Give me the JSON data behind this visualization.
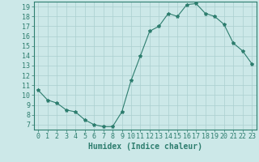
{
  "xlabel": "Humidex (Indice chaleur)",
  "ylabel": "",
  "x_values": [
    0,
    1,
    2,
    3,
    4,
    5,
    6,
    7,
    8,
    9,
    10,
    11,
    12,
    13,
    14,
    15,
    16,
    17,
    18,
    19,
    20,
    21,
    22,
    23
  ],
  "y_values": [
    10.5,
    9.5,
    9.2,
    8.5,
    8.3,
    7.5,
    7.0,
    6.8,
    6.8,
    8.3,
    11.5,
    14.0,
    16.5,
    17.0,
    18.3,
    18.0,
    19.2,
    19.3,
    18.3,
    18.0,
    17.2,
    15.3,
    14.5,
    13.2
  ],
  "line_color": "#2d7d6e",
  "marker": "*",
  "marker_size": 3,
  "bg_color": "#cce8e8",
  "grid_color": "#aacfcf",
  "xlim": [
    -0.5,
    23.5
  ],
  "ylim": [
    6.5,
    19.5
  ],
  "yticks": [
    7,
    8,
    9,
    10,
    11,
    12,
    13,
    14,
    15,
    16,
    17,
    18,
    19
  ],
  "xticks": [
    0,
    1,
    2,
    3,
    4,
    5,
    6,
    7,
    8,
    9,
    10,
    11,
    12,
    13,
    14,
    15,
    16,
    17,
    18,
    19,
    20,
    21,
    22,
    23
  ],
  "tick_color": "#2d7d6e",
  "axis_color": "#2d7d6e",
  "label_fontsize": 6,
  "xlabel_fontsize": 7
}
